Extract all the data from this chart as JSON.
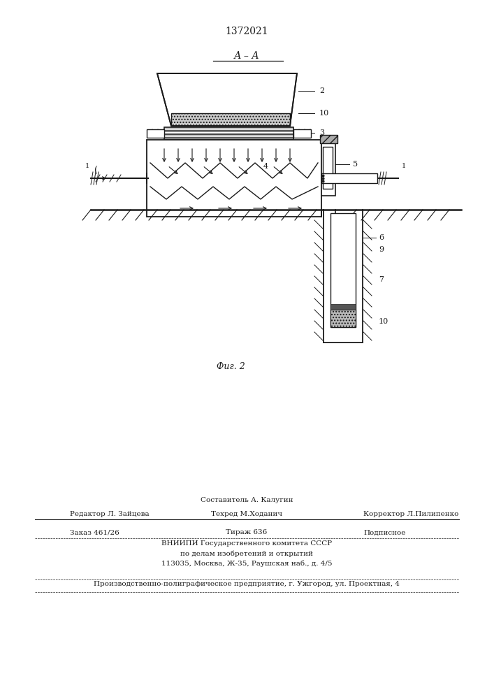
{
  "title": "1372021",
  "section_label": "А – А",
  "fig_label": "Фиг. 2",
  "bg_color": "#ffffff",
  "line_color": "#1a1a1a"
}
